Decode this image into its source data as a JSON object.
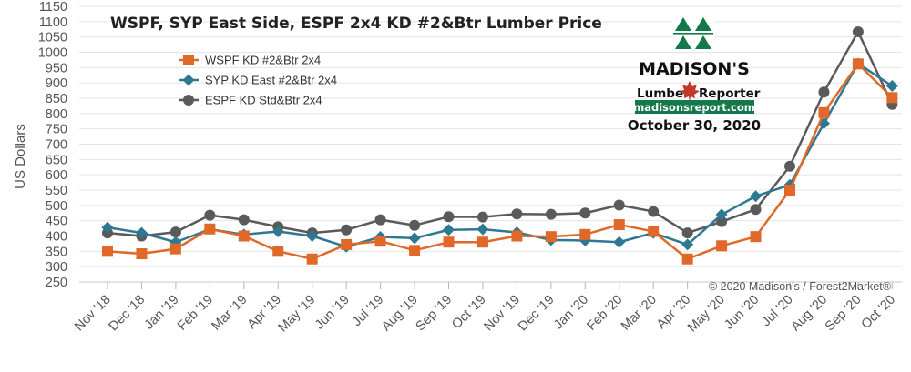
{
  "chart_data": {
    "type": "line",
    "title": "WSPF, SYP East Side, ESPF 2x4 KD #2&Btr Lumber Price",
    "xlabel": "",
    "ylabel": "US Dollars",
    "ylim": [
      250,
      1150
    ],
    "yticks": [
      250,
      300,
      350,
      400,
      450,
      500,
      550,
      600,
      650,
      700,
      750,
      800,
      850,
      900,
      950,
      1000,
      1050,
      1100,
      1150
    ],
    "grid": "horizontal",
    "legend_position": "top-left",
    "categories": [
      "Nov '18",
      "Dec '18",
      "Jan '19",
      "Feb '19",
      "Mar '19",
      "Apr '19",
      "May '19",
      "Jun '19",
      "Jul '19",
      "Aug '19",
      "Sep '19",
      "Oct '19",
      "Nov '19",
      "Dec '19",
      "Jan '20",
      "Feb '20",
      "Mar '20",
      "Apr '20",
      "May '20",
      "Jun '20",
      "Jul '20",
      "Aug '20",
      "Sep '20",
      "Oct '20"
    ],
    "series": [
      {
        "name": "WSPF KD #2&Btr 2x4",
        "color": "#e0692a",
        "marker": "square",
        "values": [
          350,
          342,
          358,
          423,
          400,
          350,
          325,
          372,
          383,
          353,
          380,
          380,
          400,
          398,
          405,
          437,
          415,
          325,
          368,
          398,
          550,
          803,
          962,
          852
        ]
      },
      {
        "name": "SYP KD East #2&Btr 2x4",
        "color": "#2e7891",
        "marker": "diamond",
        "values": [
          428,
          410,
          380,
          422,
          405,
          415,
          400,
          365,
          397,
          393,
          420,
          422,
          412,
          387,
          385,
          380,
          410,
          372,
          470,
          530,
          567,
          768,
          963,
          890
        ]
      },
      {
        "name": "ESPF KD Std&Btr 2x4",
        "color": "#5a5a5a",
        "marker": "circle",
        "values": [
          410,
          400,
          413,
          468,
          453,
          430,
          410,
          420,
          453,
          435,
          463,
          462,
          472,
          471,
          475,
          501,
          480,
          410,
          447,
          487,
          628,
          870,
          1067,
          830
        ]
      }
    ],
    "annotations": [
      "© 2020 Madison's / Forest2Market®"
    ]
  },
  "logo": {
    "brand": "MADISON'S",
    "sub_left": "Lumber",
    "sub_right": "Reporter",
    "url": "madisonsreport.com",
    "date": "October 30, 2020",
    "colors": {
      "green": "#14784a",
      "maple": "#c0392b"
    }
  }
}
